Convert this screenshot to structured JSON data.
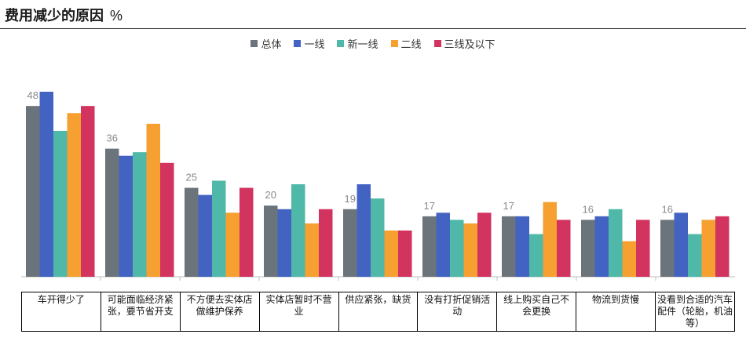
{
  "title": "费用减少的原因",
  "title_unit": "%",
  "chart_data": {
    "type": "bar",
    "title": "费用减少的原因",
    "xlabel": "",
    "ylabel": "",
    "ylim": [
      0,
      52
    ],
    "grid": false,
    "legend_position": "top-center",
    "categories": [
      "车开得少了",
      "可能面临经济紧张，要节省开支",
      "不方便去实体店做维护保养",
      "实体店暂时不营业",
      "供应紧张，缺货",
      "没有打折促销活动",
      "线上购买自己不会更换",
      "物流到货慢",
      "没看到合适的汽车配件（轮胎，机油等）"
    ],
    "series": [
      {
        "name": "总体",
        "color": "#6b747b",
        "values": [
          48,
          36,
          25,
          20,
          19,
          17,
          17,
          16,
          16
        ]
      },
      {
        "name": "一线",
        "color": "#4363c2",
        "values": [
          52,
          34,
          23,
          19,
          26,
          18,
          17,
          17,
          18
        ]
      },
      {
        "name": "新一线",
        "color": "#4fb8a8",
        "values": [
          41,
          35,
          27,
          26,
          22,
          16,
          12,
          19,
          12
        ]
      },
      {
        "name": "二线",
        "color": "#f5a030",
        "values": [
          46,
          43,
          18,
          15,
          13,
          15,
          21,
          10,
          16
        ]
      },
      {
        "name": "三线及以下",
        "color": "#d2335f",
        "values": [
          48,
          32,
          25,
          19,
          13,
          18,
          16,
          16,
          17
        ]
      }
    ],
    "data_labels": [
      48,
      36,
      25,
      20,
      19,
      17,
      17,
      16,
      16
    ]
  }
}
